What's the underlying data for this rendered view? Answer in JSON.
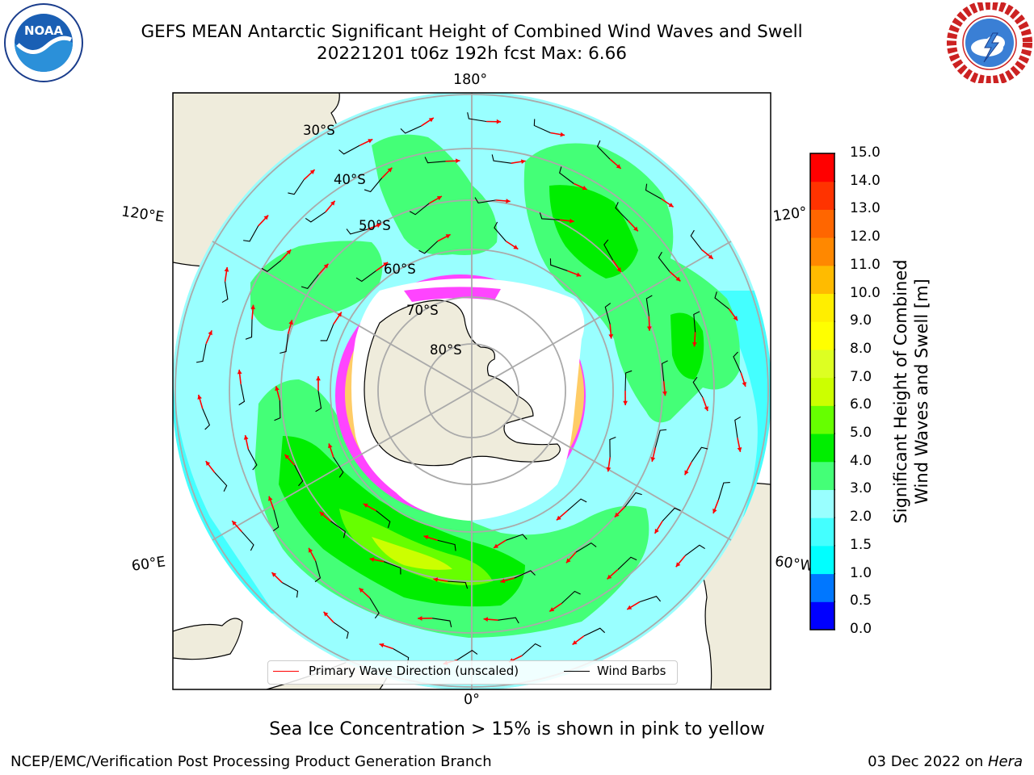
{
  "header": {
    "title_line1": "GEFS MEAN Antarctic Significant Height of Combined Wind Waves and Swell",
    "title_line2": "20221201 t06z 192h fcst   Max: 6.66"
  },
  "logos": {
    "noaa_text": "NOAA",
    "noaa_ring": "NATIONAL OCEANIC AND ATMOSPHERIC ADMINISTRATION · U.S. DEPARTMENT OF COMMERCE",
    "nws_ring": "NATIONAL WEATHER SERVICE"
  },
  "map": {
    "longitude_labels": {
      "top": "180°",
      "bottom": "0°",
      "left_upper": "120°E",
      "left_lower": "60°E",
      "right_upper": "120°",
      "right_lower": "60°W"
    },
    "latitude_labels": [
      "30°S",
      "40°S",
      "50°S",
      "60°S",
      "70°S",
      "80°S"
    ],
    "colors": {
      "land": "#efecdc",
      "sea_ice": "#ffffff",
      "ice_edge_pink": "#ff44ff",
      "ice_edge_yellow": "#ffcc44",
      "wave_arrow": "#ff0000",
      "wind_barb": "#000000",
      "grid": "#aaaaaa"
    }
  },
  "legend": {
    "primary_wave_direction": "Primary Wave Direction (unscaled)",
    "wind_barbs": "Wind Barbs"
  },
  "colorbar": {
    "title_line1": "Significant Height of Combined",
    "title_line2": "Wind Waves and Swell [m]",
    "ticks": [
      "15.0",
      "14.0",
      "13.0",
      "12.0",
      "11.0",
      "10.0",
      "9.0",
      "8.0",
      "7.0",
      "6.0",
      "5.0",
      "4.0",
      "3.0",
      "2.0",
      "1.5",
      "1.0",
      "0.5",
      "0.0"
    ],
    "colors": [
      "#0000ff",
      "#0077ff",
      "#00ffff",
      "#44ffff",
      "#99ffff",
      "#44ff77",
      "#00ee00",
      "#66ff00",
      "#ccff00",
      "#ddff22",
      "#ffff00",
      "#ffee00",
      "#ffbb00",
      "#ff8800",
      "#ff6600",
      "#ff3300",
      "#ff0000"
    ]
  },
  "notes": {
    "sea_ice": "Sea Ice Concentration > 15% is shown in pink to yellow"
  },
  "footer": {
    "left": "NCEP/EMC/Verification Post Processing Product Generation Branch",
    "date": "03 Dec 2022 on ",
    "machine": "Hera"
  }
}
